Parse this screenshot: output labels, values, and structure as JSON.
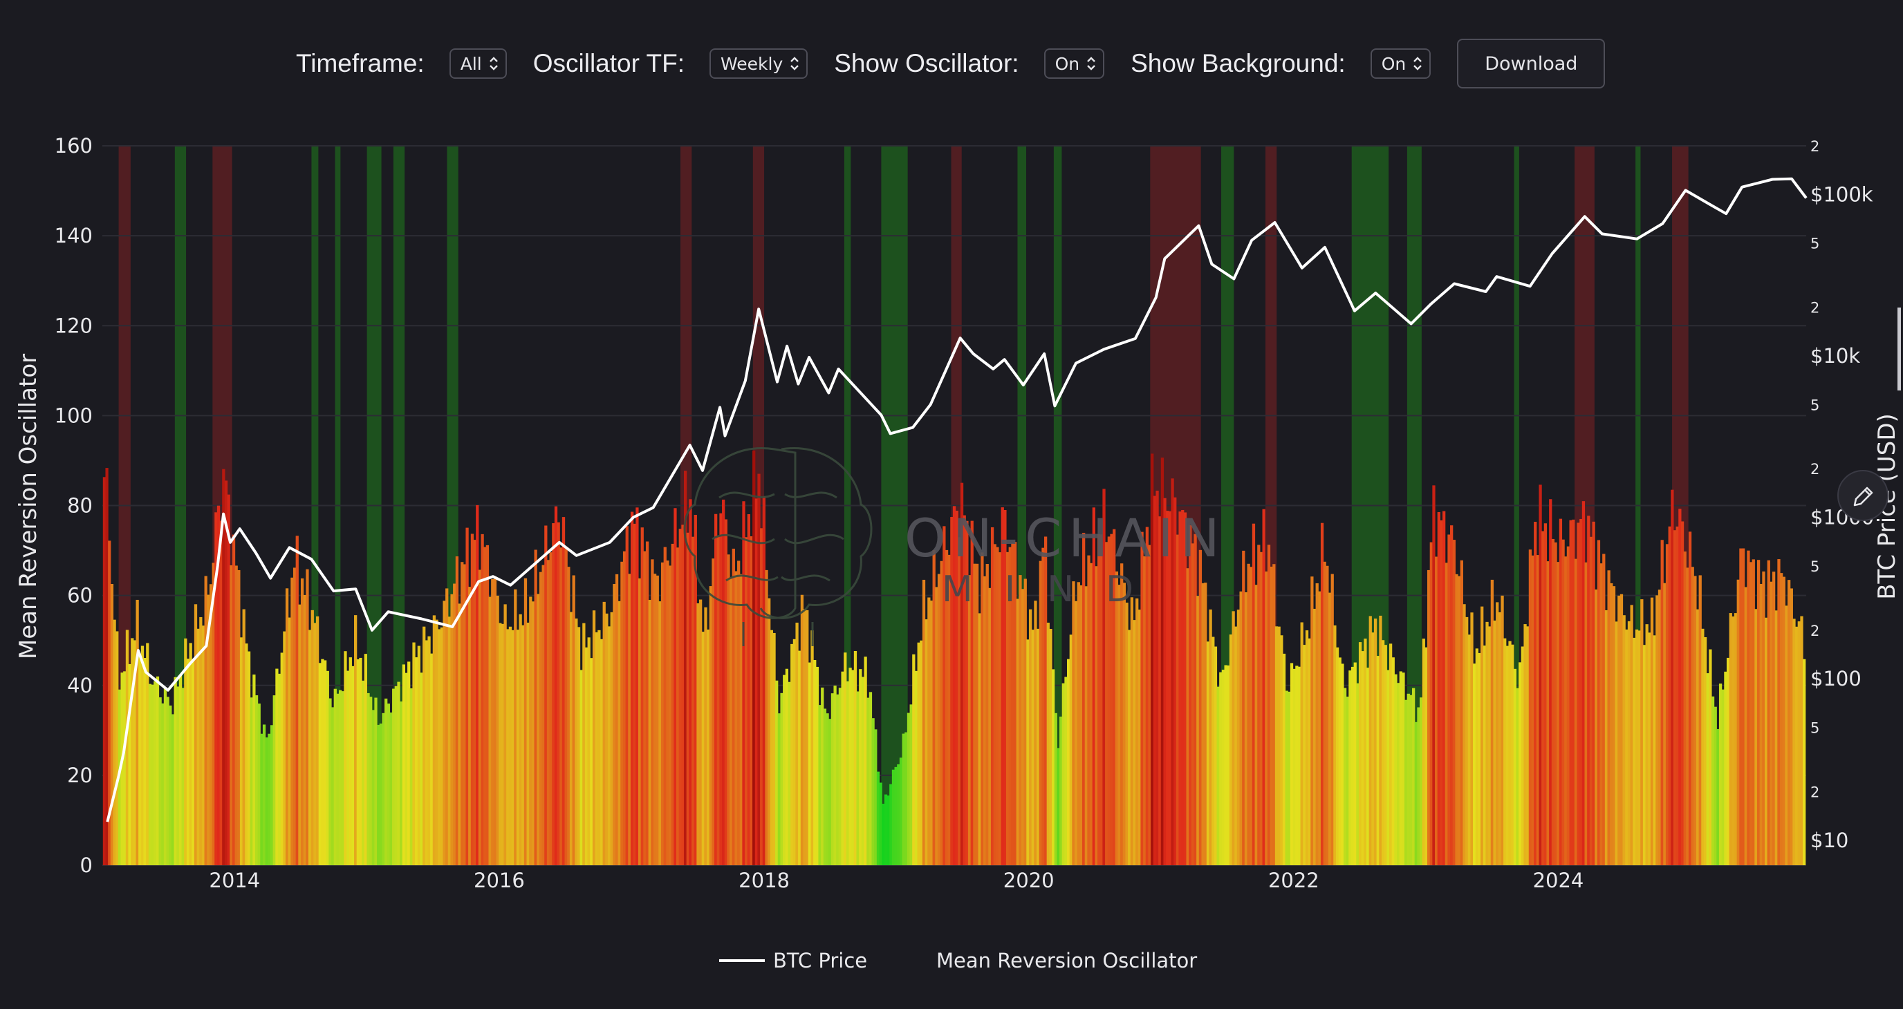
{
  "toolbar": {
    "timeframe_label": "Timeframe:",
    "timeframe_value": "All",
    "osc_tf_label": "Oscillator TF:",
    "osc_tf_value": "Weekly",
    "show_osc_label": "Show Oscillator:",
    "show_osc_value": "On",
    "show_bg_label": "Show Background:",
    "show_bg_value": "On",
    "download_label": "Download"
  },
  "watermark": {
    "line1": "ON-CHAIN",
    "line2": "MIND"
  },
  "colors": {
    "background": "#1b1b21",
    "price_line": "#ffffff",
    "zone_green": "#1d5a1d",
    "zone_red": "#5a1e22",
    "osc_low": "#16d21e",
    "osc_mid": "#e6e01e",
    "osc_high": "#e02a1a",
    "osc_extreme": "#7a0000"
  },
  "chart_data": {
    "type": "bar",
    "title": "",
    "x_range": [
      "2013-01-01",
      "2025-11-15"
    ],
    "xticks": [
      "2014",
      "2016",
      "2018",
      "2020",
      "2022",
      "2024"
    ],
    "left_axis": {
      "label": "Mean Reversion Oscillator",
      "range": [
        0,
        160
      ],
      "ticks": [
        "0",
        "20",
        "40",
        "60",
        "80",
        "100",
        "120",
        "140",
        "160"
      ]
    },
    "right_axis": {
      "label": "BTC Price (USD)",
      "scale": "log",
      "range": [
        7,
        200000
      ],
      "major_ticks": [
        {
          "v": 10,
          "t": "$10"
        },
        {
          "v": 100,
          "t": "$100"
        },
        {
          "v": 1000,
          "t": "$1000"
        },
        {
          "v": 10000,
          "t": "$10k"
        },
        {
          "v": 100000,
          "t": "$100k"
        }
      ],
      "minor_ticks": [
        {
          "v": 20,
          "t": "2"
        },
        {
          "v": 50,
          "t": "5"
        },
        {
          "v": 200,
          "t": "2"
        },
        {
          "v": 500,
          "t": "5"
        },
        {
          "v": 2000,
          "t": "2"
        },
        {
          "v": 5000,
          "t": "5"
        },
        {
          "v": 20000,
          "t": "2"
        },
        {
          "v": 50000,
          "t": "5"
        },
        {
          "v": 200000,
          "t": "2"
        }
      ]
    },
    "grid": true,
    "legend": {
      "position": "bottom-center",
      "items": [
        "BTC Price",
        "Mean Reversion Oscillator"
      ]
    },
    "series": [
      {
        "name": "BTC Price",
        "kind": "line",
        "axis": "right",
        "points": [
          [
            "2013-01-15",
            13
          ],
          [
            "2013-02-15",
            25
          ],
          [
            "2013-03-01",
            35
          ],
          [
            "2013-04-10",
            150
          ],
          [
            "2013-05-01",
            110
          ],
          [
            "2013-07-01",
            85
          ],
          [
            "2013-09-01",
            125
          ],
          [
            "2013-10-15",
            160
          ],
          [
            "2013-11-15",
            500
          ],
          [
            "2013-12-01",
            1050
          ],
          [
            "2013-12-20",
            700
          ],
          [
            "2014-01-15",
            850
          ],
          [
            "2014-03-01",
            600
          ],
          [
            "2014-04-10",
            420
          ],
          [
            "2014-06-01",
            650
          ],
          [
            "2014-08-01",
            550
          ],
          [
            "2014-10-01",
            350
          ],
          [
            "2014-12-01",
            360
          ],
          [
            "2015-01-15",
            200
          ],
          [
            "2015-03-01",
            260
          ],
          [
            "2015-06-01",
            235
          ],
          [
            "2015-08-25",
            210
          ],
          [
            "2015-11-05",
            400
          ],
          [
            "2015-12-15",
            430
          ],
          [
            "2016-02-01",
            380
          ],
          [
            "2016-06-15",
            700
          ],
          [
            "2016-08-01",
            580
          ],
          [
            "2016-11-01",
            700
          ],
          [
            "2017-01-05",
            1000
          ],
          [
            "2017-03-01",
            1150
          ],
          [
            "2017-06-10",
            2800
          ],
          [
            "2017-07-15",
            1950
          ],
          [
            "2017-09-01",
            4800
          ],
          [
            "2017-09-15",
            3200
          ],
          [
            "2017-11-10",
            7000
          ],
          [
            "2017-12-17",
            19500
          ],
          [
            "2018-02-06",
            6900
          ],
          [
            "2018-03-05",
            11500
          ],
          [
            "2018-04-05",
            6700
          ],
          [
            "2018-05-05",
            9800
          ],
          [
            "2018-06-28",
            5900
          ],
          [
            "2018-07-25",
            8300
          ],
          [
            "2018-11-20",
            4300
          ],
          [
            "2018-12-15",
            3300
          ],
          [
            "2019-02-15",
            3600
          ],
          [
            "2019-04-05",
            5000
          ],
          [
            "2019-06-26",
            12900
          ],
          [
            "2019-08-01",
            10300
          ],
          [
            "2019-09-25",
            8300
          ],
          [
            "2019-10-26",
            9500
          ],
          [
            "2019-12-17",
            6600
          ],
          [
            "2020-02-13",
            10300
          ],
          [
            "2020-03-13",
            4900
          ],
          [
            "2020-05-10",
            9000
          ],
          [
            "2020-07-27",
            11000
          ],
          [
            "2020-10-21",
            12800
          ],
          [
            "2020-12-17",
            23000
          ],
          [
            "2021-01-10",
            40000
          ],
          [
            "2021-04-14",
            64000
          ],
          [
            "2021-05-20",
            37000
          ],
          [
            "2021-07-20",
            30000
          ],
          [
            "2021-09-07",
            52000
          ],
          [
            "2021-11-10",
            67000
          ],
          [
            "2022-01-24",
            35000
          ],
          [
            "2022-03-28",
            47000
          ],
          [
            "2022-06-18",
            19000
          ],
          [
            "2022-08-15",
            24500
          ],
          [
            "2022-11-21",
            15800
          ],
          [
            "2023-01-15",
            21000
          ],
          [
            "2023-03-20",
            28000
          ],
          [
            "2023-06-15",
            25000
          ],
          [
            "2023-07-15",
            31000
          ],
          [
            "2023-10-15",
            27000
          ],
          [
            "2023-12-15",
            43000
          ],
          [
            "2024-03-14",
            73000
          ],
          [
            "2024-05-01",
            57000
          ],
          [
            "2024-08-05",
            53000
          ],
          [
            "2024-10-15",
            66000
          ],
          [
            "2024-12-17",
            106000
          ],
          [
            "2025-02-25",
            86000
          ],
          [
            "2025-04-08",
            76000
          ],
          [
            "2025-05-22",
            111000
          ],
          [
            "2025-08-14",
            124000
          ],
          [
            "2025-10-06",
            125000
          ],
          [
            "2025-11-15",
            95000
          ]
        ]
      },
      {
        "name": "Mean Reversion Oscillator",
        "kind": "bar",
        "axis": "left",
        "peaks": [
          [
            "2013-01-10",
            97
          ],
          [
            "2013-02-15",
            46
          ],
          [
            "2013-04-05",
            60
          ],
          [
            "2013-05-20",
            46
          ],
          [
            "2013-07-10",
            40
          ],
          [
            "2013-09-01",
            55
          ],
          [
            "2013-10-20",
            68
          ],
          [
            "2013-12-01",
            98
          ],
          [
            "2014-02-10",
            50
          ],
          [
            "2014-04-01",
            30
          ],
          [
            "2014-06-15",
            76
          ],
          [
            "2014-08-01",
            64
          ],
          [
            "2014-10-01",
            40
          ],
          [
            "2014-12-01",
            56
          ],
          [
            "2015-02-01",
            36
          ],
          [
            "2015-05-15",
            52
          ],
          [
            "2015-07-15",
            60
          ],
          [
            "2015-11-05",
            84
          ],
          [
            "2016-01-15",
            60
          ],
          [
            "2016-03-15",
            64
          ],
          [
            "2016-06-15",
            88
          ],
          [
            "2016-08-15",
            54
          ],
          [
            "2016-11-01",
            63
          ],
          [
            "2017-01-05",
            86
          ],
          [
            "2017-03-10",
            70
          ],
          [
            "2017-06-10",
            92
          ],
          [
            "2017-07-20",
            56
          ],
          [
            "2017-09-01",
            92
          ],
          [
            "2017-10-10",
            72
          ],
          [
            "2017-12-17",
            98
          ],
          [
            "2018-02-10",
            40
          ],
          [
            "2018-04-20",
            65
          ],
          [
            "2018-06-20",
            37
          ],
          [
            "2018-08-15",
            50
          ],
          [
            "2018-10-15",
            47
          ],
          [
            "2018-11-25",
            15
          ],
          [
            "2019-01-20",
            30
          ],
          [
            "2019-03-15",
            63
          ],
          [
            "2019-06-26",
            91
          ],
          [
            "2019-08-20",
            70
          ],
          [
            "2019-10-26",
            86
          ],
          [
            "2020-01-15",
            58
          ],
          [
            "2020-02-13",
            82
          ],
          [
            "2020-03-20",
            30
          ],
          [
            "2020-05-10",
            70
          ],
          [
            "2020-08-01",
            87
          ],
          [
            "2020-10-15",
            60
          ],
          [
            "2020-12-10",
            95
          ],
          [
            "2021-02-10",
            90
          ],
          [
            "2021-04-14",
            76
          ],
          [
            "2021-06-15",
            45
          ],
          [
            "2021-08-20",
            74
          ],
          [
            "2021-10-20",
            82
          ],
          [
            "2021-12-15",
            44
          ],
          [
            "2022-02-10",
            60
          ],
          [
            "2022-03-28",
            80
          ],
          [
            "2022-05-20",
            44
          ],
          [
            "2022-08-15",
            60
          ],
          [
            "2022-10-15",
            48
          ],
          [
            "2022-12-15",
            38
          ],
          [
            "2023-01-20",
            88
          ],
          [
            "2023-03-20",
            80
          ],
          [
            "2023-05-15",
            53
          ],
          [
            "2023-07-15",
            67
          ],
          [
            "2023-09-15",
            46
          ],
          [
            "2023-11-01",
            87
          ],
          [
            "2024-01-10",
            80
          ],
          [
            "2024-03-14",
            86
          ],
          [
            "2024-05-20",
            70
          ],
          [
            "2024-07-20",
            60
          ],
          [
            "2024-09-15",
            60
          ],
          [
            "2024-11-15",
            90
          ],
          [
            "2025-01-15",
            72
          ],
          [
            "2025-03-15",
            36
          ],
          [
            "2025-05-22",
            78
          ],
          [
            "2025-07-15",
            70
          ],
          [
            "2025-09-15",
            72
          ],
          [
            "2025-11-15",
            54
          ]
        ]
      }
    ],
    "background_zones": {
      "green": [
        [
          "2013-07-20",
          "2013-08-20"
        ],
        [
          "2014-08-01",
          "2014-08-20"
        ],
        [
          "2014-10-05",
          "2014-10-20"
        ],
        [
          "2015-01-01",
          "2015-02-10"
        ],
        [
          "2015-03-15",
          "2015-04-15"
        ],
        [
          "2015-08-10",
          "2015-09-10"
        ],
        [
          "2018-08-10",
          "2018-08-28"
        ],
        [
          "2018-11-20",
          "2019-02-01"
        ],
        [
          "2019-12-01",
          "2019-12-25"
        ],
        [
          "2020-03-10",
          "2020-04-01"
        ],
        [
          "2021-06-15",
          "2021-07-20"
        ],
        [
          "2022-06-10",
          "2022-09-20"
        ],
        [
          "2022-11-10",
          "2022-12-20"
        ],
        [
          "2023-09-01",
          "2023-09-15"
        ],
        [
          "2024-08-01",
          "2024-08-15"
        ]
      ],
      "red": [
        [
          "2013-02-15",
          "2013-03-20"
        ],
        [
          "2013-11-01",
          "2013-12-25"
        ],
        [
          "2017-05-15",
          "2017-06-15"
        ],
        [
          "2017-12-01",
          "2018-01-01"
        ],
        [
          "2019-06-01",
          "2019-06-30"
        ],
        [
          "2020-12-01",
          "2021-04-20"
        ],
        [
          "2021-10-15",
          "2021-11-15"
        ],
        [
          "2024-02-15",
          "2024-04-10"
        ],
        [
          "2024-11-10",
          "2024-12-25"
        ]
      ]
    }
  }
}
